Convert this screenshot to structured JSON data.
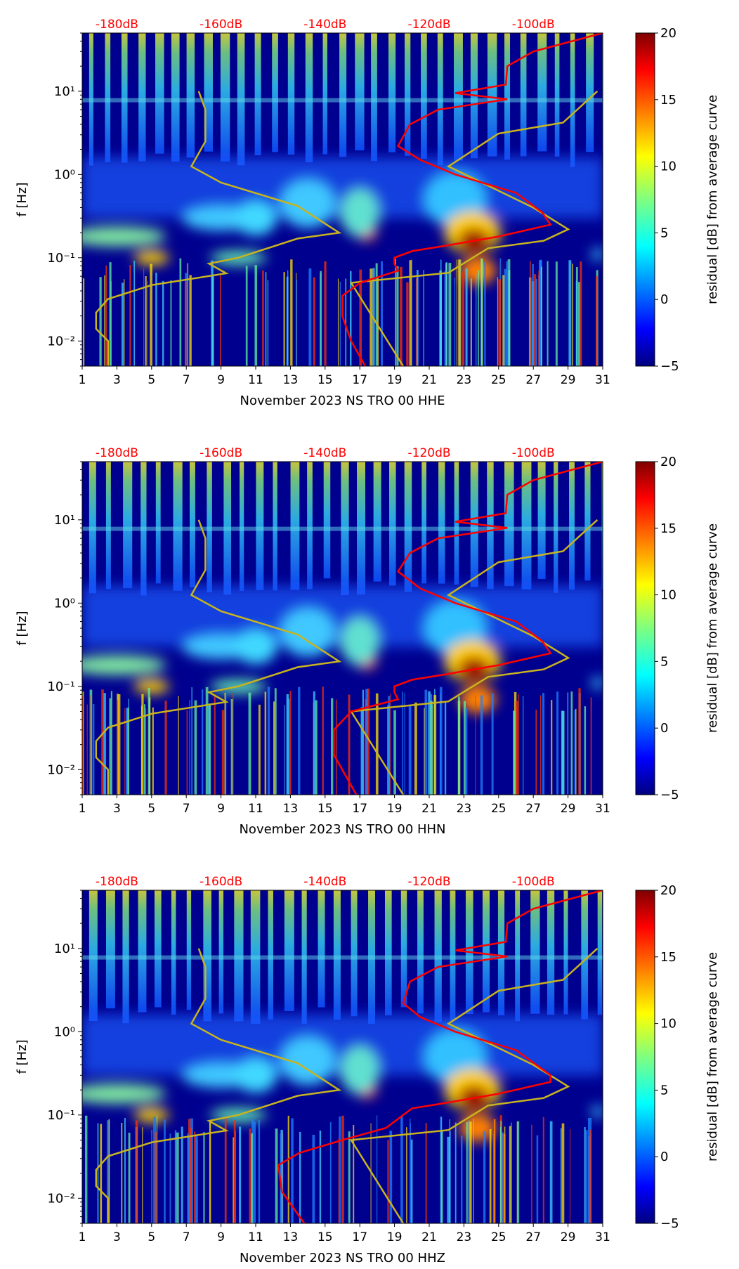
{
  "chart_data": [
    {
      "type": "heatmap",
      "xlabel": "November 2023 NS TRO 00 HHE",
      "ylabel": "f [Hz]",
      "colorbar_label": "residual [dB] from average curve",
      "red_curve_db": [
        [
          -86.7,
          50
        ],
        [
          -100,
          30
        ],
        [
          -105,
          20
        ],
        [
          -105.3,
          12
        ],
        [
          -115,
          9.5
        ],
        [
          -105,
          8
        ],
        [
          -118.3,
          6
        ],
        [
          -123.7,
          4
        ],
        [
          -126,
          2.2
        ],
        [
          -121.7,
          1.5
        ],
        [
          -115,
          1.0
        ],
        [
          -103.3,
          0.6
        ],
        [
          -98.3,
          0.35
        ],
        [
          -96.7,
          0.25
        ],
        [
          -106.7,
          0.18
        ],
        [
          -116.7,
          0.14
        ],
        [
          -123.3,
          0.12
        ],
        [
          -126.7,
          0.1
        ],
        [
          -126.7,
          0.085
        ],
        [
          -126,
          0.07
        ],
        [
          -133.3,
          0.05
        ],
        [
          -136.7,
          0.035
        ],
        [
          -136.7,
          0.02
        ],
        [
          -135,
          0.01
        ],
        [
          -132.3,
          0.005
        ]
      ]
    },
    {
      "type": "heatmap",
      "xlabel": "November 2023 NS TRO 00 HHN",
      "ylabel": "f [Hz]",
      "colorbar_label": "residual [dB] from average curve",
      "red_curve_db": [
        [
          -86.7,
          50
        ],
        [
          -100,
          30
        ],
        [
          -105,
          20
        ],
        [
          -105.3,
          12
        ],
        [
          -115,
          9.5
        ],
        [
          -105,
          8
        ],
        [
          -118.3,
          6
        ],
        [
          -123.7,
          4
        ],
        [
          -126,
          2.4
        ],
        [
          -121.7,
          1.5
        ],
        [
          -115,
          1.0
        ],
        [
          -103.3,
          0.6
        ],
        [
          -98.3,
          0.35
        ],
        [
          -96.7,
          0.25
        ],
        [
          -106.7,
          0.18
        ],
        [
          -116.7,
          0.14
        ],
        [
          -123.3,
          0.12
        ],
        [
          -126.7,
          0.1
        ],
        [
          -126.7,
          0.085
        ],
        [
          -126,
          0.07
        ],
        [
          -135,
          0.05
        ],
        [
          -138.3,
          0.03
        ],
        [
          -138.3,
          0.015
        ],
        [
          -134,
          0.005
        ]
      ]
    },
    {
      "type": "heatmap",
      "xlabel": "November 2023 NS TRO 00 HHZ",
      "ylabel": "f [Hz]",
      "colorbar_label": "residual [dB] from average curve",
      "red_curve_db": [
        [
          -86.7,
          50
        ],
        [
          -100,
          30
        ],
        [
          -105,
          20
        ],
        [
          -105.3,
          12
        ],
        [
          -115,
          9.5
        ],
        [
          -105,
          8
        ],
        [
          -118.3,
          6
        ],
        [
          -123.7,
          4
        ],
        [
          -125,
          2.2
        ],
        [
          -121.7,
          1.5
        ],
        [
          -115,
          1.0
        ],
        [
          -103.3,
          0.6
        ],
        [
          -96.7,
          0.3
        ],
        [
          -96.7,
          0.25
        ],
        [
          -106.7,
          0.18
        ],
        [
          -116.7,
          0.14
        ],
        [
          -123.3,
          0.12
        ],
        [
          -125,
          0.1
        ],
        [
          -128.3,
          0.07
        ],
        [
          -136.7,
          0.05
        ],
        [
          -145,
          0.035
        ],
        [
          -149,
          0.025
        ],
        [
          -148.3,
          0.012
        ],
        [
          -144,
          0.005
        ]
      ]
    }
  ],
  "shared": {
    "x_ticks": [
      "1",
      "3",
      "5",
      "7",
      "9",
      "11",
      "13",
      "15",
      "17",
      "19",
      "21",
      "23",
      "25",
      "27",
      "29",
      "31"
    ],
    "x_range_days": [
      1,
      31
    ],
    "top_ticks": [
      "-180dB",
      "-160dB",
      "-140dB",
      "-120dB",
      "-100dB"
    ],
    "top_tick_values": [
      -180,
      -160,
      -140,
      -120,
      -100
    ],
    "top_range_db": [
      -186.67,
      -86.67
    ],
    "y_ticks": [
      "10¹",
      "10⁰",
      "10⁻¹",
      "10⁻²"
    ],
    "y_tick_values": [
      10,
      1,
      0.1,
      0.01
    ],
    "y_range_hz": [
      0.005,
      50
    ],
    "y_scale": "log",
    "colorbar_ticks": [
      "20",
      "15",
      "10",
      "5",
      "0",
      "−5"
    ],
    "colorbar_values": [
      20,
      15,
      10,
      5,
      0,
      -5
    ],
    "colorbar_range": [
      -5,
      20
    ],
    "colormap": "jet",
    "low_noise_model_db": [
      [
        -164.3,
        10
      ],
      [
        -163,
        6
      ],
      [
        -163,
        2.5
      ],
      [
        -165.7,
        1.25
      ],
      [
        -160,
        0.8
      ],
      [
        -145.3,
        0.42
      ],
      [
        -137.3,
        0.2
      ],
      [
        -145.3,
        0.17
      ],
      [
        -156.7,
        0.1
      ],
      [
        -162.3,
        0.085
      ],
      [
        -159,
        0.065
      ],
      [
        -173.3,
        0.047
      ],
      [
        -181.7,
        0.032
      ],
      [
        -184,
        0.022
      ],
      [
        -184,
        0.014
      ],
      [
        -181.7,
        0.01
      ],
      [
        -181.7,
        0.005
      ]
    ],
    "high_noise_model_db": [
      [
        -87.7,
        10
      ],
      [
        -94.3,
        4.2
      ],
      [
        -106.7,
        3.1
      ],
      [
        -116.3,
        1.25
      ],
      [
        -100,
        0.4
      ],
      [
        -93.3,
        0.22
      ],
      [
        -98,
        0.16
      ],
      [
        -108.7,
        0.13
      ],
      [
        -116.3,
        0.066
      ],
      [
        -135,
        0.05
      ],
      [
        -125,
        0.005
      ]
    ],
    "colors": {
      "red_curve": "#ff0000",
      "noise_model": "#c8b41e",
      "top_labels": "#ff0000",
      "background": "#00008f"
    }
  }
}
